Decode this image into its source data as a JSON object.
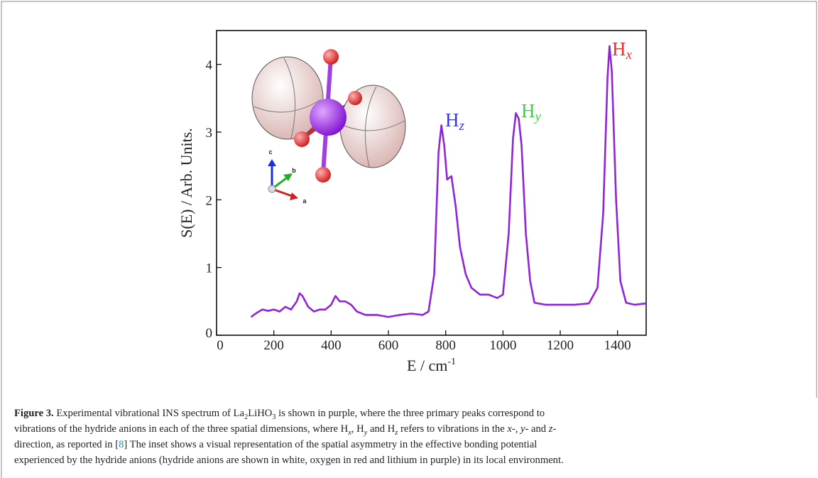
{
  "chart_data": {
    "type": "line",
    "y_label": "S(E) / Arb. Units.",
    "x_label": "E / cm",
    "x_label_sup": "-1",
    "xlim": [
      0,
      1500
    ],
    "ylim": [
      0,
      4.5
    ],
    "xticks": [
      0,
      200,
      400,
      600,
      800,
      1000,
      1200,
      1400
    ],
    "yticks": [
      0,
      1,
      2,
      3,
      4
    ],
    "series": [
      {
        "color": "#9124d6",
        "x": [
          120,
          140,
          160,
          180,
          200,
          220,
          240,
          260,
          280,
          290,
          300,
          320,
          340,
          360,
          380,
          400,
          415,
          430,
          450,
          470,
          490,
          520,
          560,
          600,
          640,
          680,
          720,
          740,
          760,
          775,
          785,
          795,
          805,
          820,
          835,
          850,
          870,
          890,
          920,
          950,
          980,
          1000,
          1020,
          1035,
          1045,
          1055,
          1065,
          1080,
          1095,
          1110,
          1150,
          1200,
          1250,
          1300,
          1330,
          1350,
          1365,
          1372,
          1380,
          1395,
          1410,
          1430,
          1460,
          1500
        ],
        "values": [
          0.27,
          0.33,
          0.38,
          0.36,
          0.38,
          0.35,
          0.42,
          0.38,
          0.5,
          0.62,
          0.58,
          0.42,
          0.35,
          0.38,
          0.38,
          0.45,
          0.58,
          0.5,
          0.5,
          0.45,
          0.35,
          0.3,
          0.3,
          0.27,
          0.3,
          0.32,
          0.3,
          0.35,
          0.9,
          2.7,
          3.1,
          2.8,
          2.3,
          2.35,
          1.9,
          1.3,
          0.9,
          0.7,
          0.6,
          0.6,
          0.55,
          0.6,
          1.5,
          2.9,
          3.28,
          3.2,
          2.8,
          1.5,
          0.8,
          0.48,
          0.45,
          0.45,
          0.45,
          0.47,
          0.7,
          1.8,
          3.8,
          4.27,
          3.9,
          2.0,
          0.8,
          0.48,
          0.45,
          0.47
        ]
      }
    ],
    "annotations": [
      {
        "text": "H",
        "sub": "z",
        "color": "#3a3ad6"
      },
      {
        "text": "H",
        "sub": "y",
        "color": "#3ecf3e"
      },
      {
        "text": "H",
        "sub": "x",
        "color": "#e83030"
      }
    ],
    "inset_axes": [
      "c",
      "b",
      "a"
    ]
  },
  "caption": {
    "lines": [
      [
        {
          "text": "Figure 3.",
          "style": "bold"
        },
        {
          "text": " Experimental vibrational INS spectrum of La",
          "style": "normal"
        },
        {
          "text": "2",
          "style": "sub"
        },
        {
          "text": "LiHO",
          "style": "normal"
        },
        {
          "text": "3",
          "style": "sub"
        },
        {
          "text": " is shown in purple, where the three primary peaks correspond to",
          "style": "normal"
        }
      ],
      [
        {
          "text": "vibrations of the hydride anions in each of the three spatial dimensions, where H",
          "style": "normal"
        },
        {
          "text": "x",
          "style": "sub-italic"
        },
        {
          "text": ", H",
          "style": "normal"
        },
        {
          "text": "y",
          "style": "sub-italic"
        },
        {
          "text": " and H",
          "style": "normal"
        },
        {
          "text": "z",
          "style": "sub-italic"
        },
        {
          "text": " refers to vibrations in the ",
          "style": "normal"
        },
        {
          "text": "x",
          "style": "italic"
        },
        {
          "text": "-, ",
          "style": "normal"
        },
        {
          "text": "y",
          "style": "italic"
        },
        {
          "text": "- and ",
          "style": "normal"
        },
        {
          "text": "z",
          "style": "italic"
        },
        {
          "text": "-",
          "style": "normal"
        }
      ],
      [
        {
          "text": "direction, as reported in [",
          "style": "normal"
        },
        {
          "text": "8",
          "style": "link"
        },
        {
          "text": "] The inset shows a visual representation of the spatial asymmetry in the effective bonding potential",
          "style": "normal"
        }
      ],
      [
        {
          "text": "experienced by the hydride anions (hydride anions are shown in white, oxygen in red and lithium in purple) in its local environment.",
          "style": "normal"
        }
      ]
    ]
  }
}
